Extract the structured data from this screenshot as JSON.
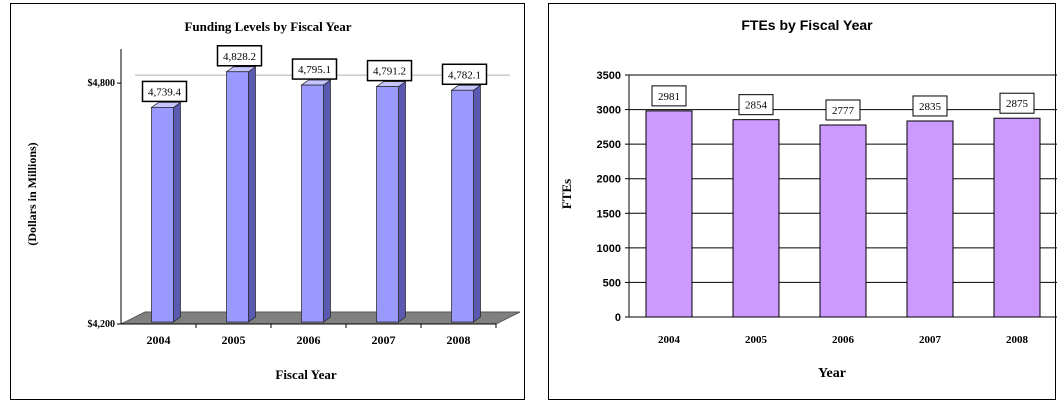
{
  "chart_data": [
    {
      "type": "bar",
      "title": "Funding Levels by Fiscal Year",
      "xlabel": "Fiscal Year",
      "ylabel": "(Dollars in Millions)",
      "categories": [
        "2004",
        "2005",
        "2006",
        "2007",
        "2008"
      ],
      "values": [
        4739.4,
        4828.2,
        4795.1,
        4791.2,
        4782.1
      ],
      "data_labels": [
        "4,739.4",
        "4,828.2",
        "4,795.1",
        "4,791.2",
        "4,782.1"
      ],
      "yticks": [
        4200,
        4800
      ],
      "ytick_labels": [
        "$4,200",
        "$4,800"
      ],
      "ylim": [
        4200,
        4860
      ],
      "colors": {
        "bar_front": "#9999ff",
        "bar_side": "#5a5ab0",
        "bar_top": "#c6c6ff",
        "floor": "#808080"
      },
      "grid": true,
      "style": "3d"
    },
    {
      "type": "bar",
      "title": "FTEs by Fiscal Year",
      "xlabel": "Year",
      "ylabel": "FTEs",
      "categories": [
        "2004",
        "2005",
        "2006",
        "2007",
        "2008"
      ],
      "values": [
        2981,
        2854,
        2777,
        2835,
        2875
      ],
      "data_labels": [
        "2981",
        "2854",
        "2777",
        "2835",
        "2875"
      ],
      "yticks": [
        0,
        500,
        1000,
        1500,
        2000,
        2500,
        3000,
        3500
      ],
      "ylim": [
        0,
        3500
      ],
      "colors": {
        "bar": "#cc99ff"
      },
      "grid": true
    }
  ]
}
